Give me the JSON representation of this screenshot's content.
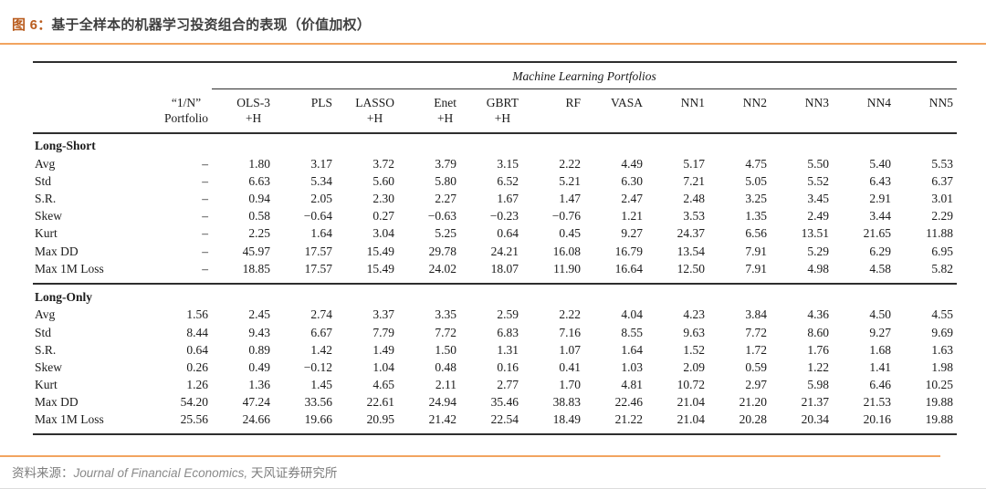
{
  "page": {
    "title_prefix": "图 6：",
    "title_text": "基于全样本的机器学习投资组合的表现（价值加权）",
    "accent_color": "#f2a45f",
    "title_prefix_color": "#b95c1e"
  },
  "table": {
    "group_header": "Machine Learning Portfolios",
    "columns": [
      {
        "line1": "“1/N”",
        "line2": "Portfolio"
      },
      {
        "line1": "OLS-3",
        "line2": "+H"
      },
      {
        "line1": "PLS",
        "line2": ""
      },
      {
        "line1": "LASSO",
        "line2": "+H"
      },
      {
        "line1": "Enet",
        "line2": "+H"
      },
      {
        "line1": "GBRT",
        "line2": "+H"
      },
      {
        "line1": "RF",
        "line2": ""
      },
      {
        "line1": "VASA",
        "line2": ""
      },
      {
        "line1": "NN1",
        "line2": ""
      },
      {
        "line1": "NN2",
        "line2": ""
      },
      {
        "line1": "NN3",
        "line2": ""
      },
      {
        "line1": "NN4",
        "line2": ""
      },
      {
        "line1": "NN5",
        "line2": ""
      }
    ],
    "sections": [
      {
        "name": "Long-Short",
        "rows": [
          {
            "label": "Avg",
            "values": [
              "–",
              "1.80",
              "3.17",
              "3.72",
              "3.79",
              "3.15",
              "2.22",
              "4.49",
              "5.17",
              "4.75",
              "5.50",
              "5.40",
              "5.53"
            ]
          },
          {
            "label": "Std",
            "values": [
              "–",
              "6.63",
              "5.34",
              "5.60",
              "5.80",
              "6.52",
              "5.21",
              "6.30",
              "7.21",
              "5.05",
              "5.52",
              "6.43",
              "6.37"
            ]
          },
          {
            "label": "S.R.",
            "values": [
              "–",
              "0.94",
              "2.05",
              "2.30",
              "2.27",
              "1.67",
              "1.47",
              "2.47",
              "2.48",
              "3.25",
              "3.45",
              "2.91",
              "3.01"
            ]
          },
          {
            "label": "Skew",
            "values": [
              "–",
              "0.58",
              "−0.64",
              "0.27",
              "−0.63",
              "−0.23",
              "−0.76",
              "1.21",
              "3.53",
              "1.35",
              "2.49",
              "3.44",
              "2.29"
            ]
          },
          {
            "label": "Kurt",
            "values": [
              "–",
              "2.25",
              "1.64",
              "3.04",
              "5.25",
              "0.64",
              "0.45",
              "9.27",
              "24.37",
              "6.56",
              "13.51",
              "21.65",
              "11.88"
            ]
          },
          {
            "label": "Max DD",
            "values": [
              "–",
              "45.97",
              "17.57",
              "15.49",
              "29.78",
              "24.21",
              "16.08",
              "16.79",
              "13.54",
              "7.91",
              "5.29",
              "6.29",
              "6.95"
            ]
          },
          {
            "label": "Max 1M Loss",
            "values": [
              "–",
              "18.85",
              "17.57",
              "15.49",
              "24.02",
              "18.07",
              "11.90",
              "16.64",
              "12.50",
              "7.91",
              "4.98",
              "4.58",
              "5.82"
            ]
          }
        ]
      },
      {
        "name": "Long-Only",
        "rows": [
          {
            "label": "Avg",
            "values": [
              "1.56",
              "2.45",
              "2.74",
              "3.37",
              "3.35",
              "2.59",
              "2.22",
              "4.04",
              "4.23",
              "3.84",
              "4.36",
              "4.50",
              "4.55"
            ]
          },
          {
            "label": "Std",
            "values": [
              "8.44",
              "9.43",
              "6.67",
              "7.79",
              "7.72",
              "6.83",
              "7.16",
              "8.55",
              "9.63",
              "7.72",
              "8.60",
              "9.27",
              "9.69"
            ]
          },
          {
            "label": "S.R.",
            "values": [
              "0.64",
              "0.89",
              "1.42",
              "1.49",
              "1.50",
              "1.31",
              "1.07",
              "1.64",
              "1.52",
              "1.72",
              "1.76",
              "1.68",
              "1.63"
            ]
          },
          {
            "label": "Skew",
            "values": [
              "0.26",
              "0.49",
              "−0.12",
              "1.04",
              "0.48",
              "0.16",
              "0.41",
              "1.03",
              "2.09",
              "0.59",
              "1.22",
              "1.41",
              "1.98"
            ]
          },
          {
            "label": "Kurt",
            "values": [
              "1.26",
              "1.36",
              "1.45",
              "4.65",
              "2.11",
              "2.77",
              "1.70",
              "4.81",
              "10.72",
              "2.97",
              "5.98",
              "6.46",
              "10.25"
            ]
          },
          {
            "label": "Max DD",
            "values": [
              "54.20",
              "47.24",
              "33.56",
              "22.61",
              "24.94",
              "35.46",
              "38.83",
              "22.46",
              "21.04",
              "21.20",
              "21.37",
              "21.53",
              "19.88"
            ]
          },
          {
            "label": "Max 1M Loss",
            "values": [
              "25.56",
              "24.66",
              "19.66",
              "20.95",
              "21.42",
              "22.54",
              "18.49",
              "21.22",
              "21.04",
              "20.28",
              "20.34",
              "20.16",
              "19.88"
            ]
          }
        ]
      }
    ]
  },
  "footer": {
    "source_label": "资料来源：",
    "source_italic": "Journal of Financial Economics,",
    "source_rest": " 天风证券研究所"
  }
}
